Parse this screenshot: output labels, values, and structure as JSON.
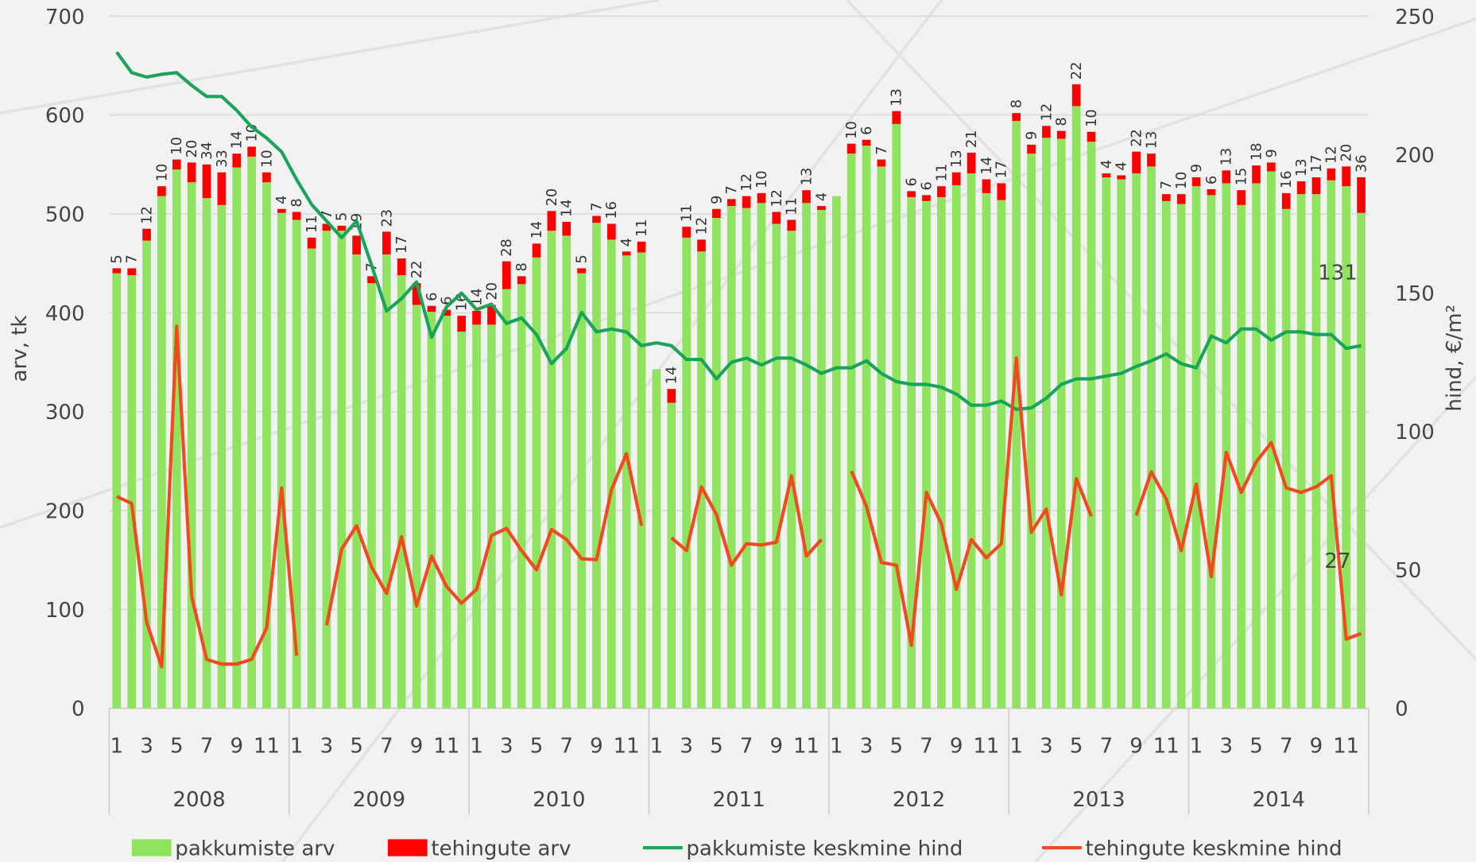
{
  "chart_data": {
    "type": "bar_line",
    "y_label": "arv, tk",
    "y2_label": "hind, €/m²",
    "categories": [
      "1",
      null,
      "3",
      null,
      "5",
      null,
      "7",
      null,
      "9",
      null,
      "11",
      null,
      "1",
      null,
      "3",
      null,
      "5",
      null,
      "7",
      null,
      "9",
      null,
      "11",
      null,
      "1",
      null,
      "3",
      null,
      "5",
      null,
      "7",
      null,
      "9",
      null,
      "11",
      null,
      "1",
      null,
      "3",
      null,
      "5",
      null,
      "7",
      null,
      "9",
      null,
      "11",
      null,
      "1",
      null,
      "3",
      null,
      "5",
      null,
      "7",
      null,
      "9",
      null,
      "11",
      null,
      "1",
      null,
      "3",
      null,
      "5",
      null,
      "7",
      null,
      "9",
      null,
      "11",
      null,
      "1",
      null,
      "3",
      null,
      "5",
      null,
      "7",
      null,
      "9",
      null,
      "11",
      null
    ],
    "groups": [
      "2008",
      "2009",
      "2010",
      "2011",
      "2012",
      "2013",
      "2014"
    ],
    "ylim": [
      0,
      700
    ],
    "yticks": [
      0,
      100,
      200,
      300,
      400,
      500,
      600,
      700
    ],
    "y2lim": [
      0,
      250
    ],
    "y2ticks": [
      0,
      50,
      100,
      150,
      200,
      250
    ],
    "grid": true,
    "series": [
      {
        "name": "pakkumiste arv",
        "kind": "bar",
        "color": "#8fe35f",
        "values": [
          440,
          438,
          473,
          518,
          545,
          532,
          516,
          509,
          547,
          558,
          532,
          501,
          494,
          465,
          483,
          483,
          459,
          430,
          459,
          438,
          408,
          401,
          397,
          381,
          388,
          388,
          424,
          429,
          456,
          483,
          478,
          440,
          491,
          474,
          458,
          461,
          343,
          309,
          476,
          462,
          496,
          508,
          506,
          511,
          490,
          483,
          511,
          504,
          518,
          561,
          569,
          548,
          591,
          517,
          513,
          517,
          529,
          541,
          521,
          514,
          594,
          561,
          577,
          576,
          609,
          573,
          537,
          535,
          541,
          548,
          513,
          510,
          528,
          519,
          531,
          509,
          531,
          543,
          505,
          520,
          520,
          534,
          528,
          501
        ]
      },
      {
        "name": "tehingute arv",
        "kind": "bar",
        "color": "#ff0000",
        "data_labels": true,
        "values": [
          5,
          7,
          12,
          10,
          10,
          20,
          34,
          33,
          14,
          10,
          10,
          4,
          8,
          11,
          7,
          5,
          19,
          7,
          23,
          17,
          22,
          6,
          6,
          16,
          14,
          20,
          28,
          8,
          14,
          20,
          14,
          5,
          7,
          16,
          4,
          11,
          null,
          14,
          11,
          12,
          9,
          7,
          12,
          10,
          12,
          11,
          13,
          4,
          null,
          10,
          6,
          7,
          13,
          6,
          6,
          11,
          13,
          21,
          14,
          17,
          8,
          9,
          12,
          8,
          22,
          10,
          4,
          4,
          22,
          13,
          7,
          10,
          9,
          6,
          13,
          15,
          18,
          9,
          16,
          13,
          17,
          12,
          20,
          36
        ]
      },
      {
        "name": "pakkumiste keskmine hind",
        "kind": "line",
        "axis": "y2",
        "color": "#1aa35a",
        "labeled_points": [
          83
        ],
        "values": [
          237,
          229.6,
          228,
          229,
          229.6,
          225,
          221,
          221,
          216,
          210,
          206,
          201,
          191,
          182,
          176,
          170,
          176,
          160,
          143.5,
          148,
          154,
          134,
          145,
          150,
          144,
          146,
          139,
          141,
          135,
          124.5,
          130,
          143,
          136,
          137,
          136,
          131,
          132,
          131,
          126,
          126,
          119,
          125,
          126.5,
          124,
          126.5,
          126.5,
          124,
          121,
          123,
          123,
          125.5,
          121,
          118,
          117,
          117,
          116,
          113.5,
          109.5,
          109.5,
          111,
          108,
          108.5,
          112,
          117,
          119,
          119,
          120,
          121,
          123.5,
          125.5,
          128,
          124.5,
          123,
          134.5,
          132,
          137,
          137,
          133,
          136,
          136,
          135,
          135,
          130,
          131
        ]
      },
      {
        "name": "tehingute keskmine hind",
        "kind": "line",
        "axis": "y2",
        "color": "#f04a1e",
        "labeled_points": [
          83
        ],
        "values": [
          76.5,
          74,
          31,
          15,
          138,
          40.5,
          17.7,
          16,
          16,
          17.7,
          29,
          79.6,
          19,
          null,
          30,
          57.5,
          66,
          51,
          41.5,
          62,
          37,
          55,
          44,
          38,
          43,
          62.5,
          65,
          57,
          50,
          64.6,
          61,
          54,
          53.7,
          79,
          92,
          66,
          null,
          61.6,
          57,
          80,
          70,
          51.7,
          59.5,
          59,
          60,
          84,
          55,
          61,
          null,
          85.7,
          73,
          52.7,
          51.7,
          22.8,
          78,
          66.7,
          43,
          61,
          54.4,
          59.5,
          126.5,
          63.6,
          72,
          41,
          83,
          69.4,
          null,
          null,
          69.7,
          85.4,
          75.5,
          57,
          81,
          47.6,
          92.5,
          78,
          89,
          96,
          79.6,
          78,
          80,
          84,
          25,
          27
        ]
      }
    ]
  }
}
